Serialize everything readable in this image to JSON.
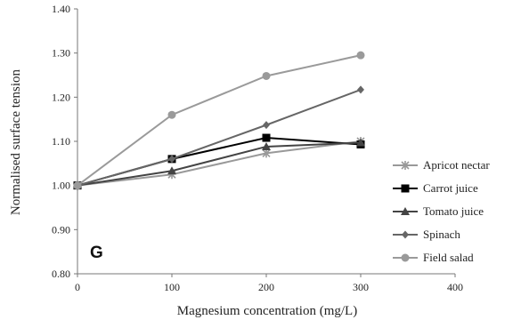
{
  "chart_data": {
    "type": "line",
    "panel_label": "G",
    "xlabel": "Magnesium concentration (mg/L)",
    "ylabel": "Normalised  surface tension",
    "xlim": [
      0,
      400
    ],
    "ylim": [
      0.8,
      1.4
    ],
    "xticks": [
      0,
      100,
      200,
      300,
      400
    ],
    "yticks": [
      0.8,
      0.9,
      1.0,
      1.1,
      1.2,
      1.3,
      1.4
    ],
    "xtick_labels": [
      "0",
      "100",
      "200",
      "300",
      "400"
    ],
    "ytick_labels": [
      "0.80",
      "0.90",
      "1.00",
      "1.10",
      "1.20",
      "1.30",
      "1.40"
    ],
    "grid": false,
    "legend_position": "right",
    "x": [
      0,
      100,
      200,
      300
    ],
    "series": [
      {
        "name": "Apricot nectar",
        "values": [
          1.0,
          1.025,
          1.073,
          1.1
        ],
        "color": "#999999",
        "marker": "star"
      },
      {
        "name": "Carrot juice",
        "values": [
          1.0,
          1.06,
          1.108,
          1.093
        ],
        "color": "#000000",
        "marker": "square"
      },
      {
        "name": "Tomato juice",
        "values": [
          1.0,
          1.033,
          1.088,
          1.097
        ],
        "color": "#444444",
        "marker": "triangle"
      },
      {
        "name": "Spinach",
        "values": [
          1.0,
          1.06,
          1.137,
          1.217
        ],
        "color": "#666666",
        "marker": "diamond"
      },
      {
        "name": "Field salad",
        "values": [
          1.0,
          1.16,
          1.248,
          1.295
        ],
        "color": "#9a9a9a",
        "marker": "circle"
      }
    ]
  }
}
